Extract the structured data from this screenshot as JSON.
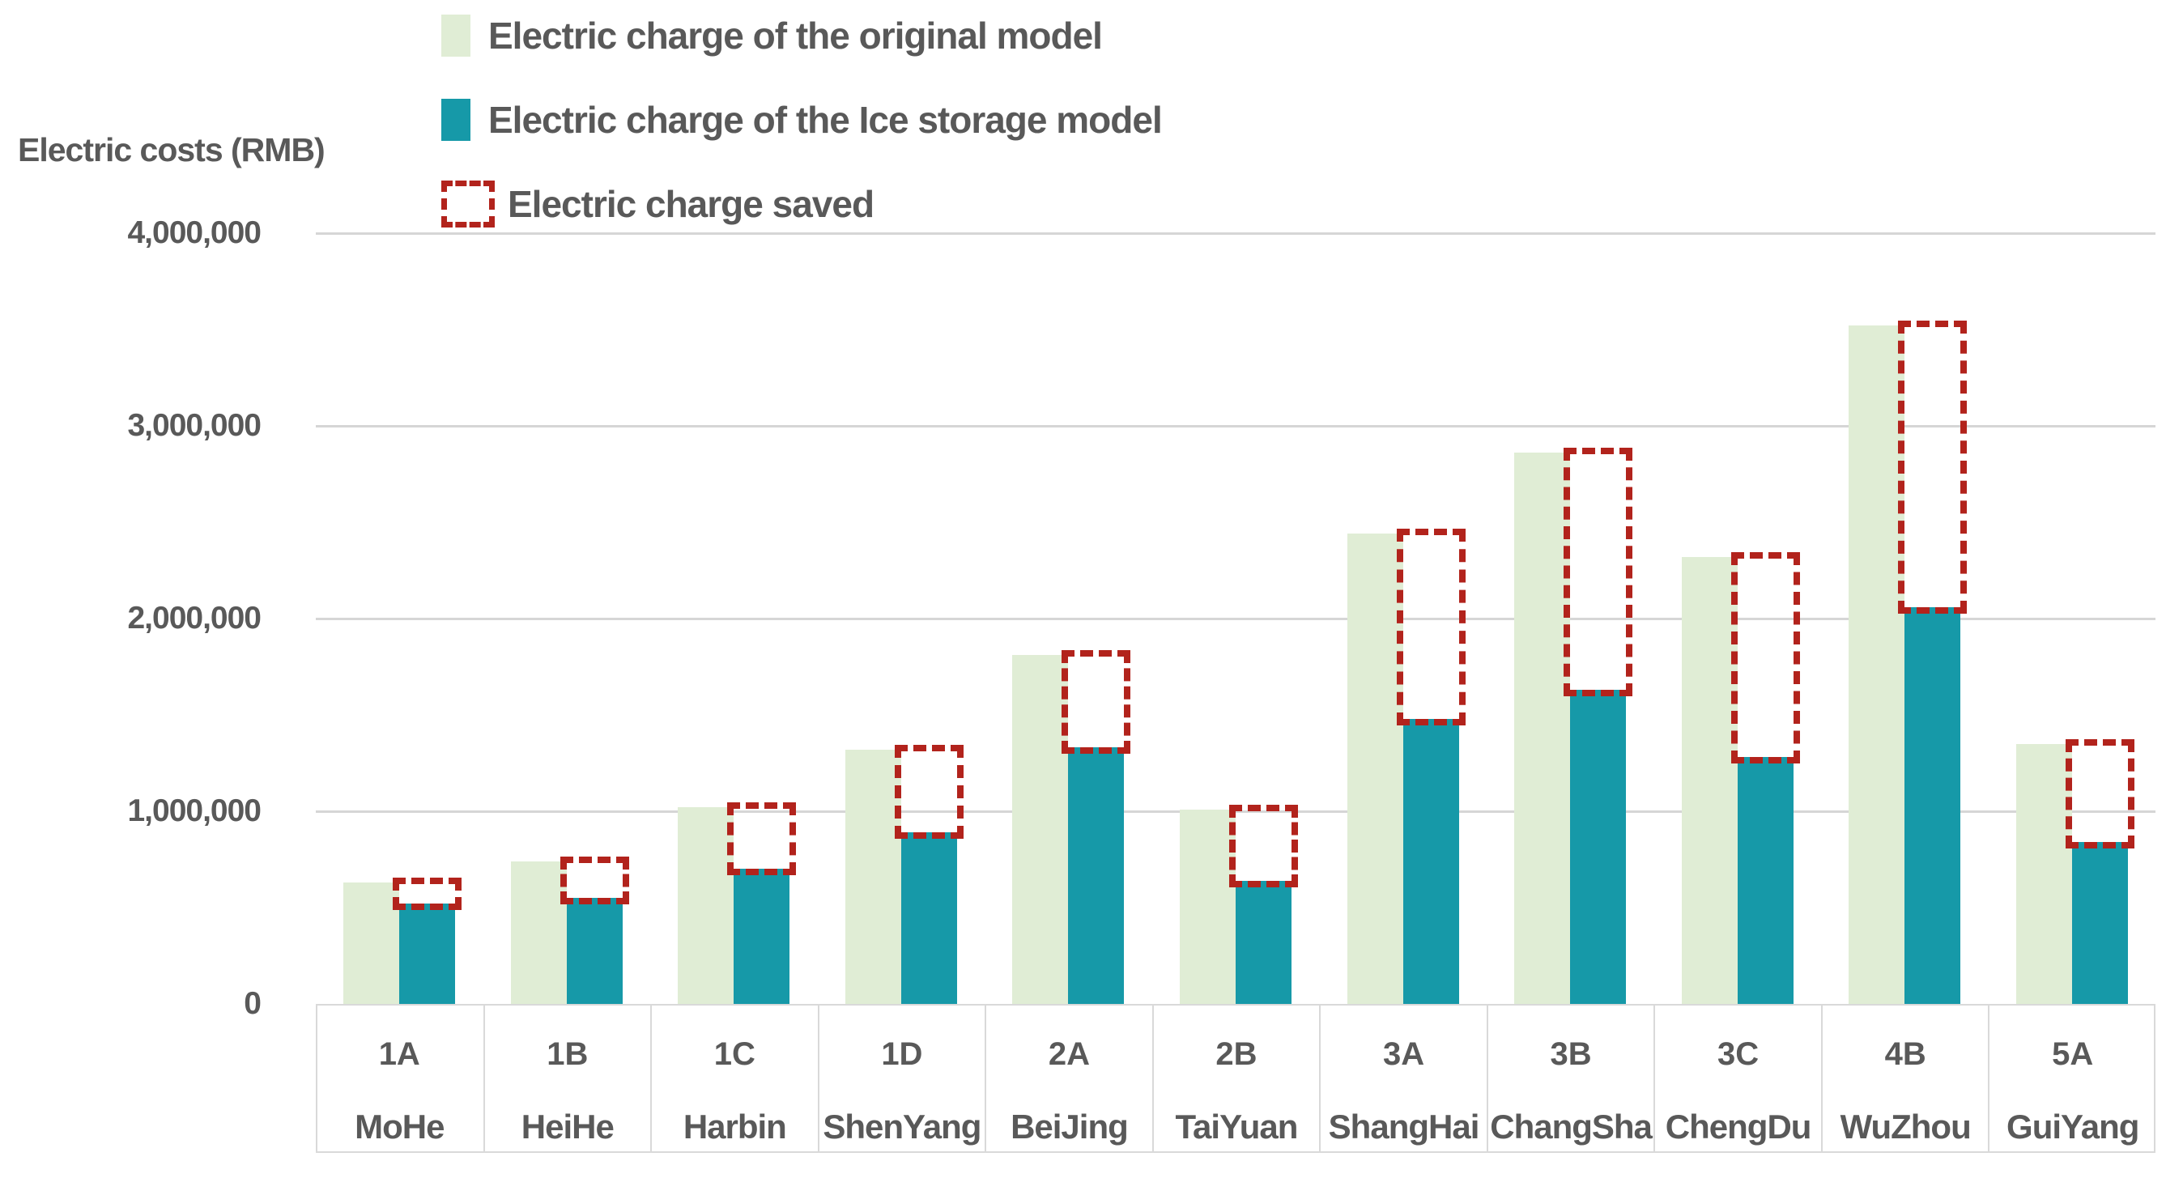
{
  "y_axis_title": "Electric costs (RMB)",
  "legend": [
    {
      "label": "Electric charge of the original model",
      "color": "#e0edd5",
      "swatch": "solid"
    },
    {
      "label": "Electric charge of the Ice storage model",
      "color": "#1699a8",
      "swatch": "solid"
    },
    {
      "label": "Electric charge saved",
      "color": "#b2231c",
      "swatch": "dashed"
    }
  ],
  "chart_data": {
    "type": "bar",
    "title": "",
    "ylabel": "Electric costs (RMB)",
    "xlabel": "",
    "ylim": [
      0,
      4000000
    ],
    "ytick_interval": 1000000,
    "grid": true,
    "legend_position": "top-center",
    "yticks": [
      {
        "label": "4,000,000",
        "value": 4000000
      },
      {
        "label": "3,000,000",
        "value": 3000000
      },
      {
        "label": "2,000,000",
        "value": 2000000
      },
      {
        "label": "1,000,000",
        "value": 1000000
      },
      {
        "label": "0",
        "value": 0
      }
    ],
    "categories": [
      {
        "code": "1A",
        "city": "MoHe"
      },
      {
        "code": "1B",
        "city": "HeiHe"
      },
      {
        "code": "1C",
        "city": "Harbin"
      },
      {
        "code": "1D",
        "city": "ShenYang"
      },
      {
        "code": "2A",
        "city": "BeiJing"
      },
      {
        "code": "2B",
        "city": "TaiYuan"
      },
      {
        "code": "3A",
        "city": "ShangHai"
      },
      {
        "code": "3B",
        "city": "ChangSha"
      },
      {
        "code": "3C",
        "city": "ChengDu"
      },
      {
        "code": "4B",
        "city": "WuZhou"
      },
      {
        "code": "5A",
        "city": "GuiYang"
      }
    ],
    "series": [
      {
        "name": "Electric charge of the original model",
        "color": "#e0edd5",
        "style": "solid-bar",
        "values": [
          630000,
          740000,
          1020000,
          1320000,
          1810000,
          1010000,
          2440000,
          2860000,
          2320000,
          3520000,
          1350000
        ]
      },
      {
        "name": "Electric charge of the Ice storage model",
        "color": "#1699a8",
        "style": "solid-bar",
        "values": [
          520000,
          550000,
          700000,
          890000,
          1330000,
          640000,
          1480000,
          1630000,
          1280000,
          2060000,
          840000
        ]
      },
      {
        "name": "Electric charge saved",
        "color": "#b2231c",
        "style": "dashed-outline",
        "values": [
          110000,
          190000,
          320000,
          430000,
          480000,
          370000,
          960000,
          1230000,
          1040000,
          1460000,
          510000
        ]
      }
    ]
  }
}
